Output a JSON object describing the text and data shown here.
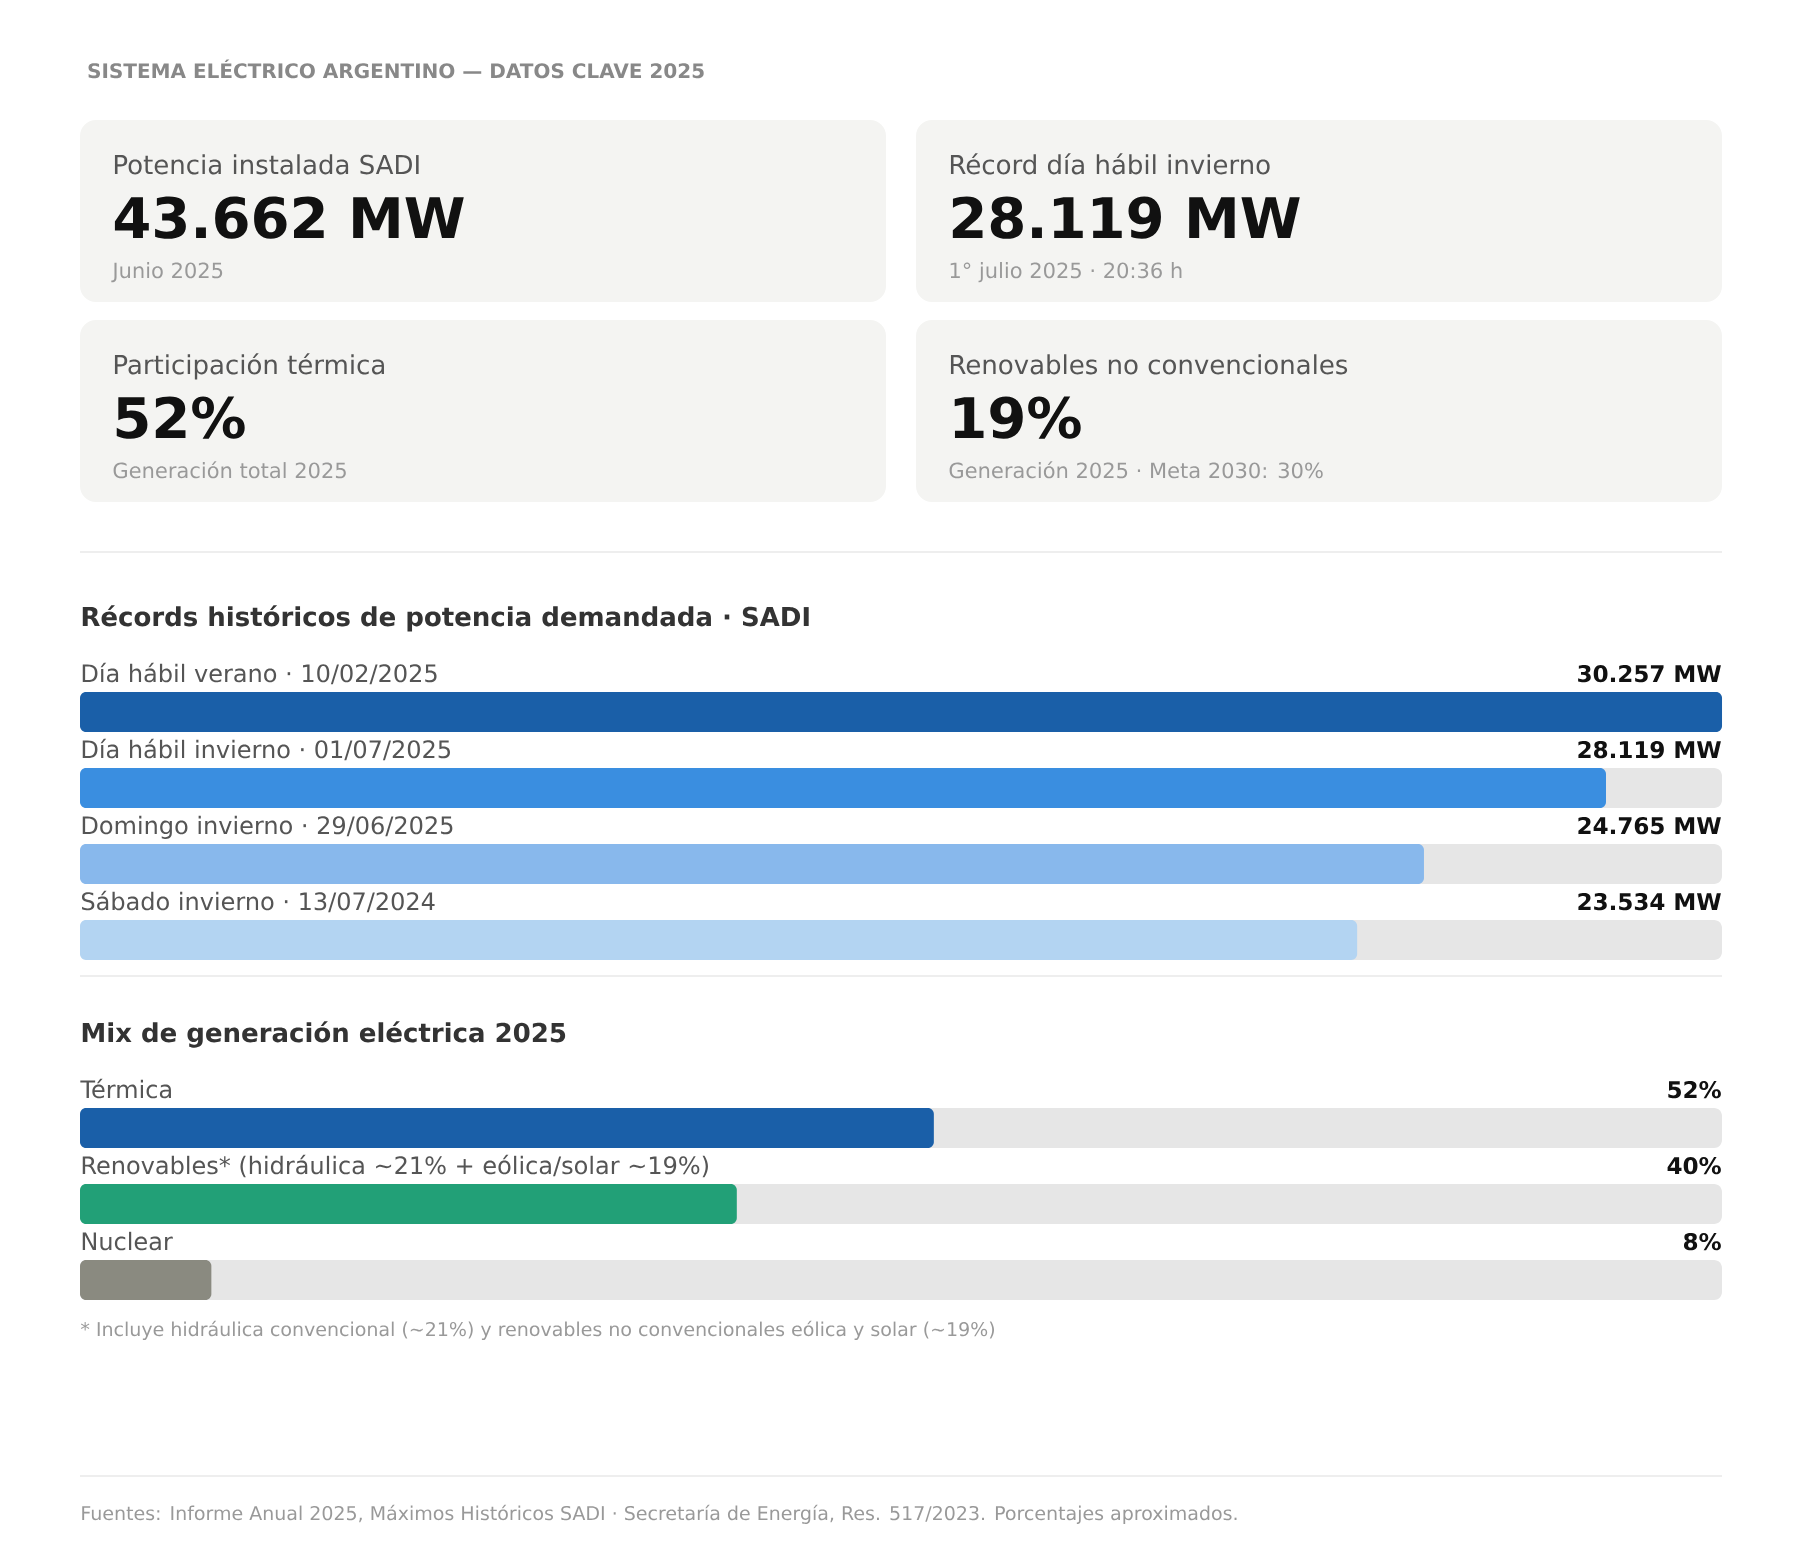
{
  "chart_data": [
    {
      "type": "other",
      "title": "SISTEMA ELÉCTRICO ARGENTINO — DATOS CLAVE 2025",
      "annotations": [
        "Potencia instalada SADI",
        "43.662 MW",
        "Junio 2025",
        "Récord día hábil invierno",
        "28.119 MW",
        "1° julio 2025 · 20:36 h",
        "Participación térmica",
        "52%",
        "Generación total 2025",
        "Renovables no convencionales",
        "19%",
        "Generación 2025 · Meta 2030: 30%"
      ]
    },
    {
      "type": "bar",
      "orientation": "horizontal",
      "title": "Récords históricos de potencia demandada · SADI",
      "categories": [
        "Día hábil verano · 10/02/2025",
        "Día hábil invierno · 01/07/2025",
        "Domingo invierno · 29/06/2025",
        "Sábado invierno · 13/07/2024"
      ],
      "values": [
        30257,
        28119,
        24765,
        23534
      ],
      "value_labels": [
        "30.257 MW",
        "28.119 MW",
        "24.765 MW",
        "23.534 MW"
      ],
      "colors": [
        "#1a5fa8",
        "#3a8ee0",
        "#88b8ec",
        "#b3d4f2"
      ],
      "xlim": [
        0,
        30257
      ]
    },
    {
      "type": "bar",
      "orientation": "horizontal",
      "title": "Mix de generación eléctrica 2025",
      "categories": [
        "Térmica",
        "Renovables* (hidráulica ~21% + eólica/solar ~19%)",
        "Nuclear"
      ],
      "values": [
        52,
        40,
        8
      ],
      "value_labels": [
        "52%",
        "40%",
        "8%"
      ],
      "colors": [
        "#1a5fa8",
        "#22a077",
        "#8a8a80"
      ],
      "xlim": [
        0,
        100
      ],
      "annotations": [
        "* Incluye hidráulica convencional (~21%) y renovables no convencionales eólica y solar (~19%)",
        "Fuentes: Informe Anual 2025, Máximos Históricos SADI · Secretaría de Energía, Res. 517/2023. Porcentajes aproximados."
      ]
    }
  ]
}
